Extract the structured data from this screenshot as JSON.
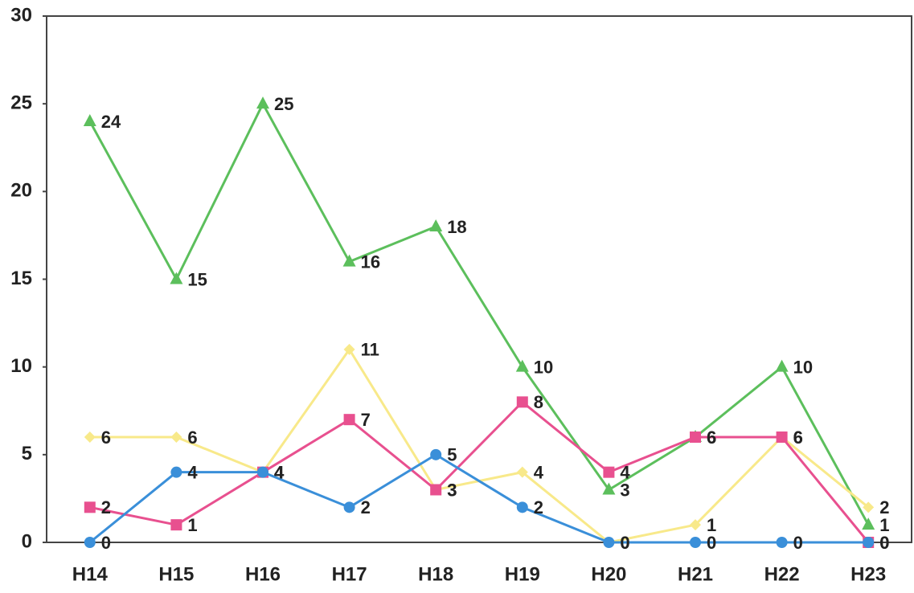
{
  "chart_data": {
    "type": "line",
    "categories": [
      "H14",
      "H15",
      "H16",
      "H17",
      "H18",
      "H19",
      "H20",
      "H21",
      "H22",
      "H23"
    ],
    "series": [
      {
        "color": "#5cbf5c",
        "marker": "triangle",
        "values": [
          24,
          15,
          25,
          16,
          18,
          10,
          3,
          6,
          10,
          1
        ]
      },
      {
        "color": "#f8e98a",
        "marker": "diamond",
        "values": [
          6,
          6,
          4,
          11,
          3,
          4,
          0,
          1,
          6,
          2
        ]
      },
      {
        "color": "#e8508f",
        "marker": "square",
        "values": [
          2,
          1,
          4,
          7,
          3,
          8,
          4,
          6,
          6,
          0
        ]
      },
      {
        "color": "#3a8fd9",
        "marker": "circle",
        "values": [
          0,
          4,
          4,
          2,
          5,
          2,
          0,
          0,
          0,
          0
        ]
      }
    ],
    "ylim": [
      0,
      30
    ],
    "yticks": [
      0,
      5,
      10,
      15,
      20,
      25,
      30
    ],
    "grid": false
  }
}
